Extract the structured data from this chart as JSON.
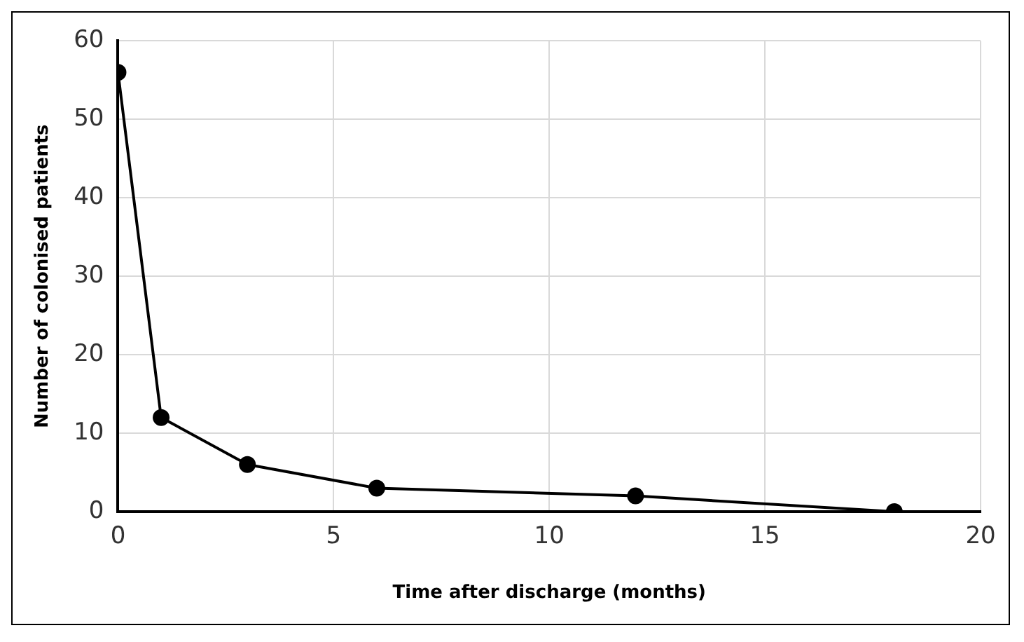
{
  "chart_data": {
    "type": "line",
    "xlabel": "Time after discharge (months)",
    "ylabel": "Number of colonised patients",
    "x": [
      0,
      1,
      3,
      6,
      12,
      18
    ],
    "series": [
      {
        "color": "#000000",
        "values": [
          56,
          12,
          6,
          3,
          2,
          0
        ]
      }
    ],
    "xlim": [
      0,
      20
    ],
    "xticks": [
      0,
      5,
      10,
      15,
      20
    ],
    "ylim": [
      0,
      60
    ],
    "yticks": [
      0,
      10,
      20,
      30,
      40,
      50,
      60
    ],
    "grid": true,
    "legend": false,
    "marker": "circle",
    "line_style": "solid"
  }
}
